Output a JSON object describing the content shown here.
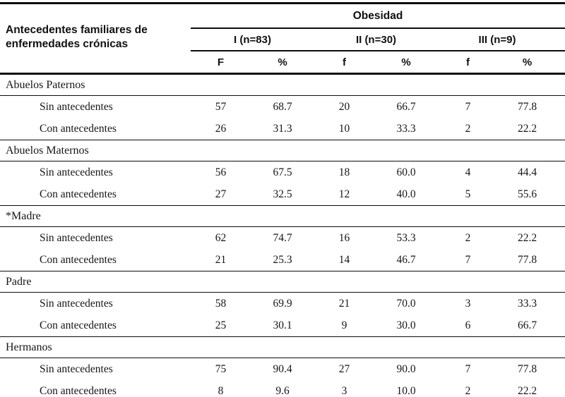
{
  "table": {
    "row_header": "Antecedentes familiares de enfermedades crónicas",
    "col_group_title": "Obesidad",
    "groups": [
      {
        "label": "I (n=83)"
      },
      {
        "label": "II (n=30)"
      },
      {
        "label": "III (n=9)"
      }
    ],
    "subheaders": [
      "F",
      "%",
      "f",
      "%",
      "f",
      "%"
    ],
    "sections": [
      {
        "title": "Abuelos Paternos",
        "rows": [
          {
            "label": "Sin antecedentes",
            "values": [
              "57",
              "68.7",
              "20",
              "66.7",
              "7",
              "77.8"
            ]
          },
          {
            "label": "Con antecedentes",
            "values": [
              "26",
              "31.3",
              "10",
              "33.3",
              "2",
              "22.2"
            ]
          }
        ]
      },
      {
        "title": "Abuelos Maternos",
        "rows": [
          {
            "label": "Sin antecedentes",
            "values": [
              "56",
              "67.5",
              "18",
              "60.0",
              "4",
              "44.4"
            ]
          },
          {
            "label": "Con antecedentes",
            "values": [
              "27",
              "32.5",
              "12",
              "40.0",
              "5",
              "55.6"
            ]
          }
        ]
      },
      {
        "title": "*Madre",
        "rows": [
          {
            "label": "Sin antecedentes",
            "values": [
              "62",
              "74.7",
              "16",
              "53.3",
              "2",
              "22.2"
            ]
          },
          {
            "label": "Con antecedentes",
            "values": [
              "21",
              "25.3",
              "14",
              "46.7",
              "7",
              "77.8"
            ]
          }
        ]
      },
      {
        "title": "Padre",
        "rows": [
          {
            "label": "Sin antecedentes",
            "values": [
              "58",
              "69.9",
              "21",
              "70.0",
              "3",
              "33.3"
            ]
          },
          {
            "label": "Con antecedentes",
            "values": [
              "25",
              "30.1",
              "9",
              "30.0",
              "6",
              "66.7"
            ]
          }
        ]
      },
      {
        "title": "Hermanos",
        "rows": [
          {
            "label": "Sin antecedentes",
            "values": [
              "75",
              "90.4",
              "27",
              "90.0",
              "7",
              "77.8"
            ]
          },
          {
            "label": "Con antecedentes",
            "values": [
              "8",
              "9.6",
              "3",
              "10.0",
              "2",
              "22.2"
            ]
          }
        ]
      }
    ]
  }
}
